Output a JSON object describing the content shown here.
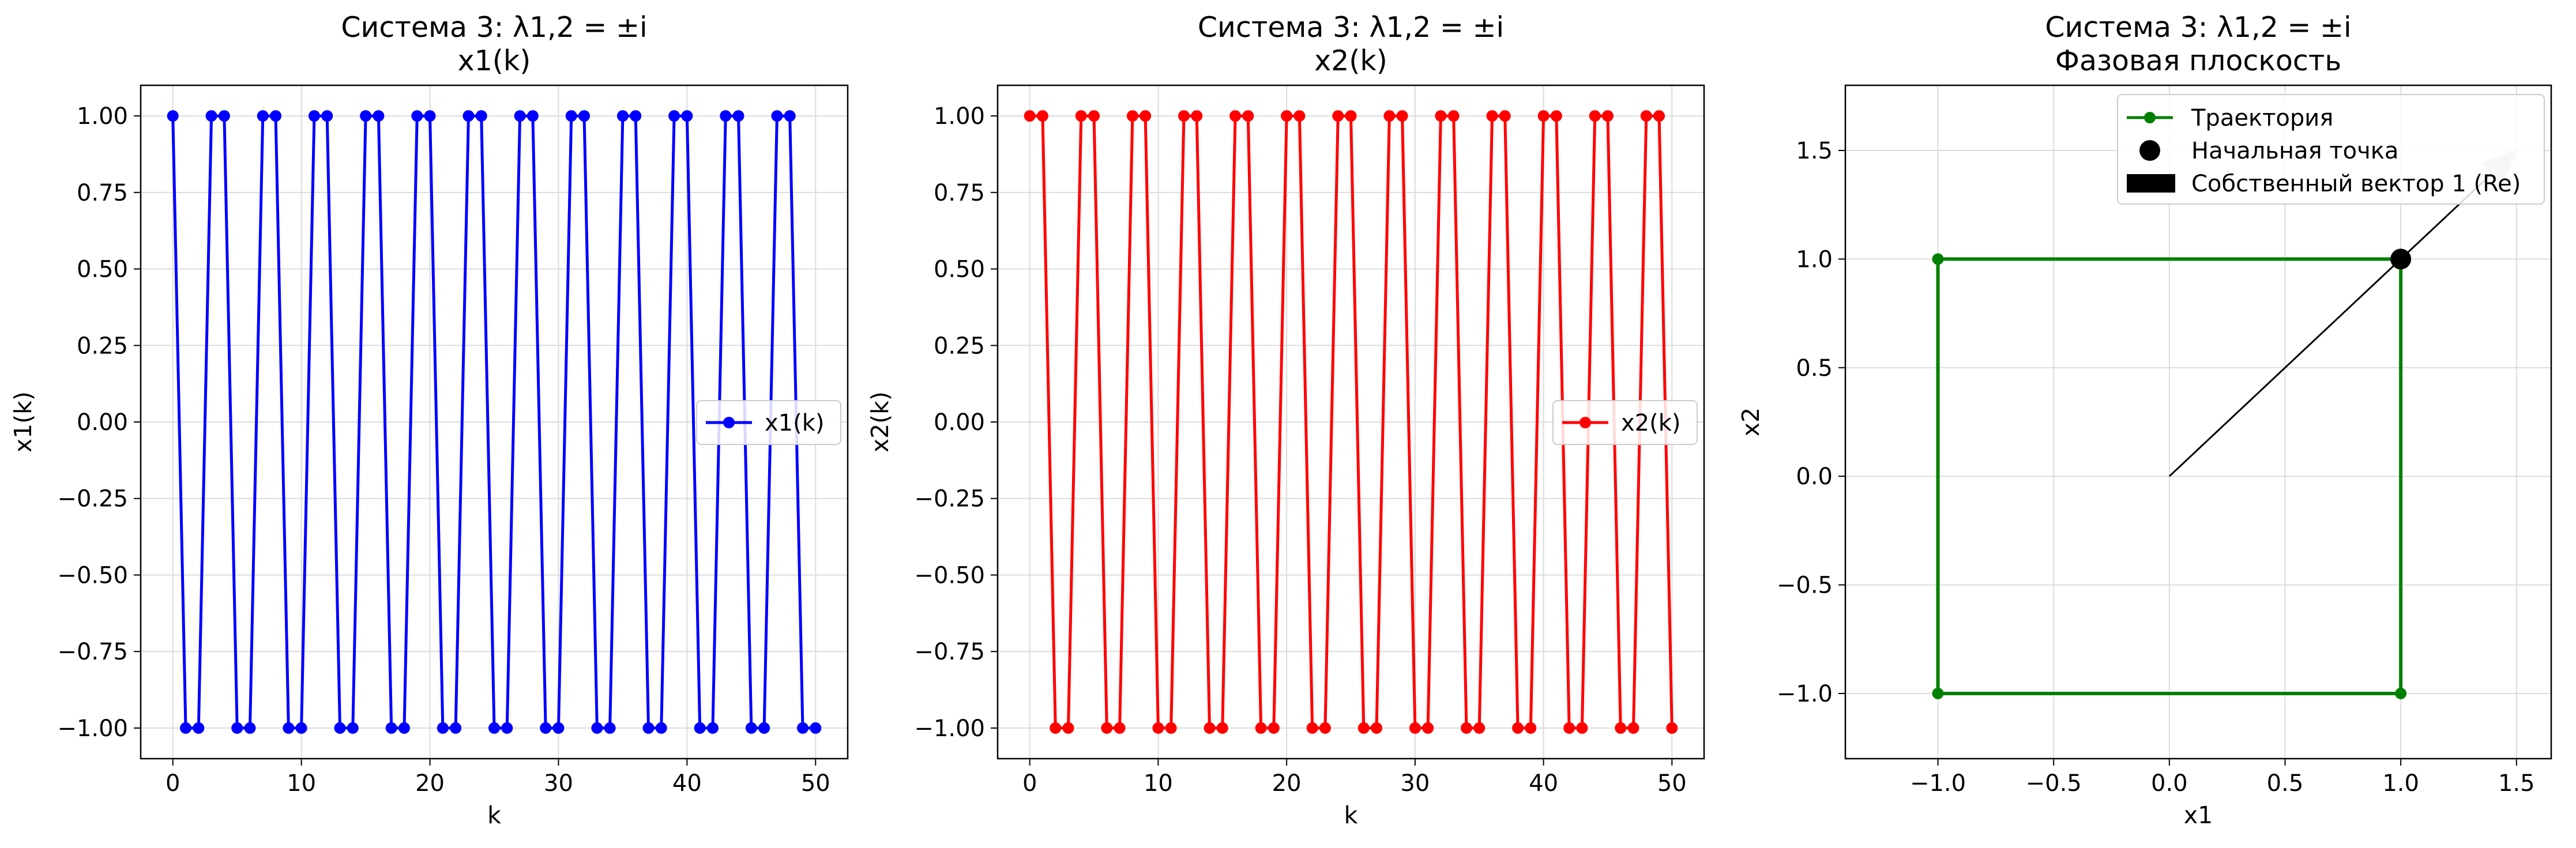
{
  "chart_data": [
    {
      "type": "line",
      "title": "Система 3: λ1,2 = ±i",
      "subtitle": "x1(k)",
      "xlabel": "k",
      "ylabel": "x1(k)",
      "xlim": [
        -2.5,
        52.5
      ],
      "ylim": [
        -1.1,
        1.1
      ],
      "xticks": [
        0,
        10,
        20,
        30,
        40,
        50
      ],
      "yticks": [
        -1.0,
        -0.75,
        -0.5,
        -0.25,
        0.0,
        0.25,
        0.5,
        0.75,
        1.0
      ],
      "grid": true,
      "legend_position": "center-right",
      "x": [
        0,
        1,
        2,
        3,
        4,
        5,
        6,
        7,
        8,
        9,
        10,
        11,
        12,
        13,
        14,
        15,
        16,
        17,
        18,
        19,
        20,
        21,
        22,
        23,
        24,
        25,
        26,
        27,
        28,
        29,
        30,
        31,
        32,
        33,
        34,
        35,
        36,
        37,
        38,
        39,
        40,
        41,
        42,
        43,
        44,
        45,
        46,
        47,
        48,
        49,
        50
      ],
      "series": [
        {
          "name": "x1(k)",
          "color": "#0000ff",
          "marker": "circle",
          "values": [
            1,
            -1,
            -1,
            1,
            1,
            -1,
            -1,
            1,
            1,
            -1,
            -1,
            1,
            1,
            -1,
            -1,
            1,
            1,
            -1,
            -1,
            1,
            1,
            -1,
            -1,
            1,
            1,
            -1,
            -1,
            1,
            1,
            -1,
            -1,
            1,
            1,
            -1,
            -1,
            1,
            1,
            -1,
            -1,
            1,
            1,
            -1,
            -1,
            1,
            1,
            -1,
            -1,
            1,
            1,
            -1,
            -1
          ]
        }
      ]
    },
    {
      "type": "line",
      "title": "Система 3: λ1,2 = ±i",
      "subtitle": "x2(k)",
      "xlabel": "k",
      "ylabel": "x2(k)",
      "xlim": [
        -2.5,
        52.5
      ],
      "ylim": [
        -1.1,
        1.1
      ],
      "xticks": [
        0,
        10,
        20,
        30,
        40,
        50
      ],
      "yticks": [
        -1.0,
        -0.75,
        -0.5,
        -0.25,
        0.0,
        0.25,
        0.5,
        0.75,
        1.0
      ],
      "grid": true,
      "legend_position": "center-right",
      "x": [
        0,
        1,
        2,
        3,
        4,
        5,
        6,
        7,
        8,
        9,
        10,
        11,
        12,
        13,
        14,
        15,
        16,
        17,
        18,
        19,
        20,
        21,
        22,
        23,
        24,
        25,
        26,
        27,
        28,
        29,
        30,
        31,
        32,
        33,
        34,
        35,
        36,
        37,
        38,
        39,
        40,
        41,
        42,
        43,
        44,
        45,
        46,
        47,
        48,
        49,
        50
      ],
      "series": [
        {
          "name": "x2(k)",
          "color": "#ff0000",
          "marker": "circle",
          "values": [
            1,
            1,
            -1,
            -1,
            1,
            1,
            -1,
            -1,
            1,
            1,
            -1,
            -1,
            1,
            1,
            -1,
            -1,
            1,
            1,
            -1,
            -1,
            1,
            1,
            -1,
            -1,
            1,
            1,
            -1,
            -1,
            1,
            1,
            -1,
            -1,
            1,
            1,
            -1,
            -1,
            1,
            1,
            -1,
            -1,
            1,
            1,
            -1,
            -1,
            1,
            1,
            -1,
            -1,
            1,
            1,
            -1
          ]
        }
      ]
    },
    {
      "type": "line",
      "title": "Система 3: λ1,2 = ±i",
      "subtitle": "Фазовая плоскость",
      "xlabel": "x1",
      "ylabel": "x2",
      "xlim": [
        -1.4,
        1.65
      ],
      "ylim": [
        -1.3,
        1.8
      ],
      "xticks": [
        -1.0,
        -0.5,
        0.0,
        0.5,
        1.0,
        1.5
      ],
      "yticks": [
        -1.0,
        -0.5,
        0.0,
        0.5,
        1.0,
        1.5
      ],
      "grid": true,
      "legend_position": "upper-right",
      "series": [
        {
          "name": "Траектория",
          "color": "#008000",
          "marker": "circle",
          "x": [
            1,
            -1,
            -1,
            1,
            1
          ],
          "y": [
            1,
            1,
            -1,
            -1,
            1
          ]
        },
        {
          "name": "Начальная точка",
          "color": "#000000",
          "marker": "large-circle",
          "x": [
            1
          ],
          "y": [
            1
          ]
        },
        {
          "name": "Собственный вектор 1 (Re)",
          "color": "#000000",
          "marker": "arrow",
          "x": [
            0,
            1.5
          ],
          "y": [
            0,
            1.5
          ]
        }
      ]
    }
  ]
}
